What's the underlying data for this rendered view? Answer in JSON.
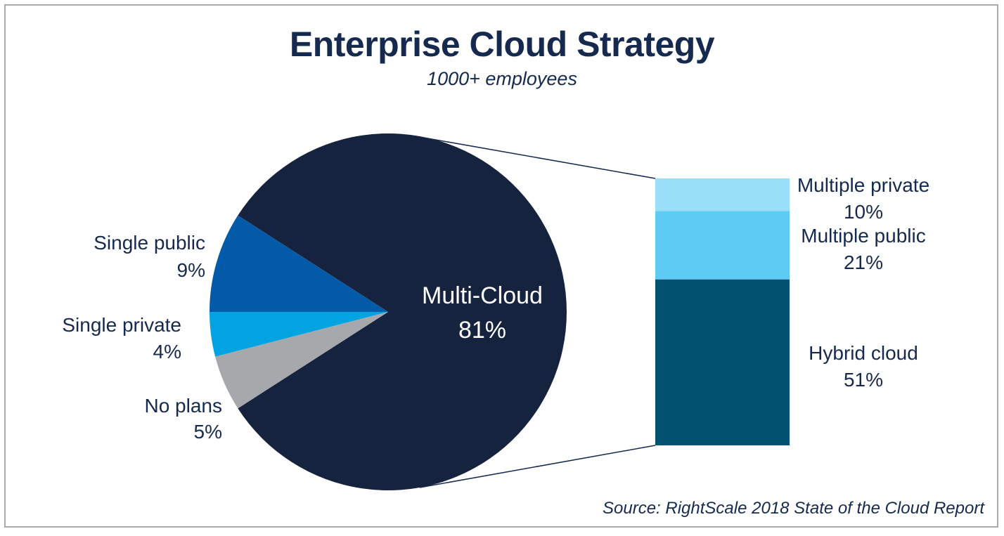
{
  "chart_data": {
    "type": "pie",
    "title": "Enterprise Cloud Strategy",
    "subtitle": "1000+ employees",
    "source": "Source: RightScale 2018 State of the Cloud Report",
    "slices": [
      {
        "label": "Multi-Cloud",
        "value": 81,
        "value_label": "81%",
        "color": "#16233f"
      },
      {
        "label": "Single public",
        "value": 9,
        "value_label": "9%",
        "color": "#035aa8"
      },
      {
        "label": "Single private",
        "value": 4,
        "value_label": "4%",
        "color": "#01a3e1"
      },
      {
        "label": "No plans",
        "value": 5,
        "value_label": "5%",
        "color": "#a6a8ab"
      }
    ],
    "breakdown": {
      "of": "Multi-Cloud",
      "type": "stacked-bar",
      "segments": [
        {
          "label": "Hybrid cloud",
          "value": 51,
          "value_label": "51%",
          "color": "#025170"
        },
        {
          "label": "Multiple public",
          "value": 21,
          "value_label": "21%",
          "color": "#5ecbf5"
        },
        {
          "label": "Multiple private",
          "value": 10,
          "value_label": "10%",
          "color": "#9adff8"
        }
      ]
    }
  }
}
